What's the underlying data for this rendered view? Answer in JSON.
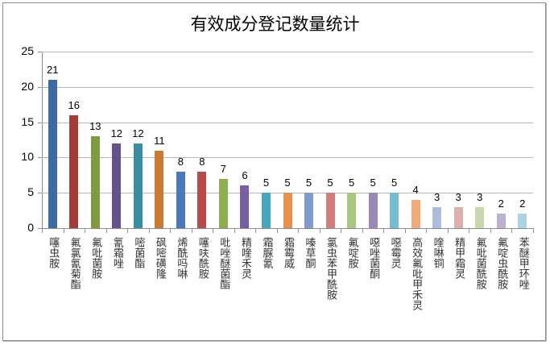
{
  "chart_data": {
    "type": "bar",
    "title": "有效成分登记数量统计",
    "xlabel": "",
    "ylabel": "",
    "ylim": [
      0,
      25
    ],
    "yticks": [
      0,
      5,
      10,
      15,
      20,
      25
    ],
    "grid": true,
    "legend": null,
    "data_labels": true,
    "categories": [
      "噻虫胺",
      "氟氯氰菊酯",
      "氟吡菌胺",
      "氰霜唑",
      "嘧菌酯",
      "砜嘧磺隆",
      "烯酰吗啉",
      "噻呋酰胺",
      "吡唑醚菌酯",
      "精喹禾灵",
      "霜脲氰",
      "霜霉威",
      "嗪草酮",
      "氯虫苯甲酰胺",
      "氟啶胺",
      "噁唑菌酮",
      "噁霉灵",
      "高效氟吡甲禾灵",
      "喹啉铜",
      "精甲霜灵",
      "氟吡菌酰胺",
      "氟啶虫酰胺",
      "苯醚甲环唑"
    ],
    "values": [
      21,
      16,
      13,
      12,
      12,
      11,
      8,
      8,
      7,
      6,
      5,
      5,
      5,
      5,
      5,
      5,
      5,
      4,
      3,
      3,
      3,
      2,
      2
    ],
    "colors": [
      "#3d6aa2",
      "#a33b38",
      "#7f9a43",
      "#674f8a",
      "#3a8ea3",
      "#cc7a33",
      "#4a78b8",
      "#b84a47",
      "#8fae52",
      "#7a5fa0",
      "#45a6bc",
      "#e8914a",
      "#7e9ccd",
      "#d07d7b",
      "#a8c67e",
      "#9d87b8",
      "#74bccf",
      "#f2a97a",
      "#abbcdd",
      "#ddb0ae",
      "#c6d8ac",
      "#bdb0cf",
      "#a9d4e0"
    ]
  },
  "chart": {
    "title": "有效成分登记数量统计",
    "y_tick_labels": [
      "25",
      "20",
      "15",
      "10",
      "5",
      "0"
    ]
  }
}
